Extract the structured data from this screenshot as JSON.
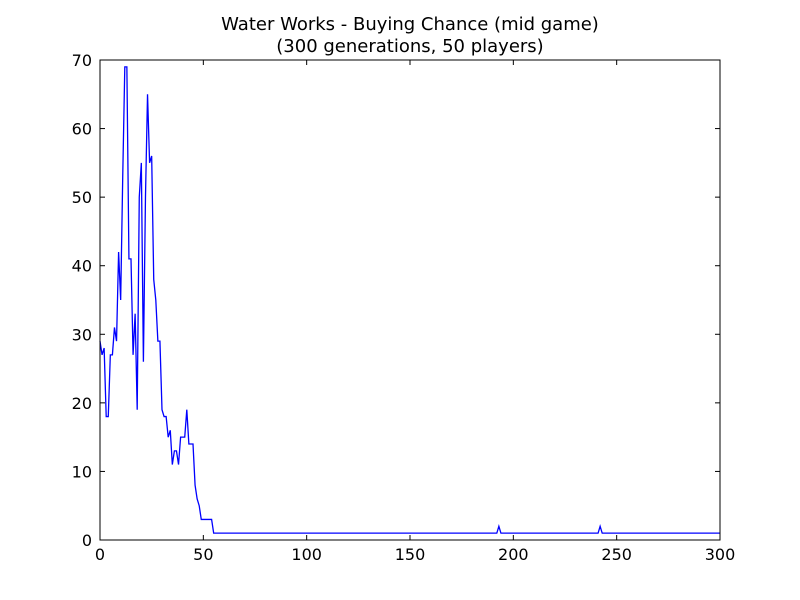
{
  "chart_data": {
    "type": "line",
    "title": "Water Works - Buying Chance (mid game)",
    "subtitle": "(300 generations, 50 players)",
    "xlabel": "",
    "ylabel": "",
    "xlim": [
      0,
      300
    ],
    "ylim": [
      0,
      70
    ],
    "xticks": [
      0,
      50,
      100,
      150,
      200,
      250,
      300
    ],
    "yticks": [
      0,
      10,
      20,
      30,
      40,
      50,
      60,
      70
    ],
    "grid": false,
    "legend": "none",
    "series": [
      {
        "color": "#0000ff",
        "points": [
          [
            0,
            29
          ],
          [
            1,
            27
          ],
          [
            2,
            28
          ],
          [
            3,
            18
          ],
          [
            4,
            18
          ],
          [
            5,
            27
          ],
          [
            6,
            27
          ],
          [
            7,
            31
          ],
          [
            8,
            29
          ],
          [
            9,
            42
          ],
          [
            10,
            35
          ],
          [
            11,
            53
          ],
          [
            12,
            69
          ],
          [
            13,
            69
          ],
          [
            14,
            41
          ],
          [
            15,
            41
          ],
          [
            16,
            27
          ],
          [
            17,
            33
          ],
          [
            18,
            19
          ],
          [
            19,
            50
          ],
          [
            20,
            55
          ],
          [
            21,
            26
          ],
          [
            22,
            50
          ],
          [
            23,
            65
          ],
          [
            24,
            55
          ],
          [
            25,
            56
          ],
          [
            26,
            38
          ],
          [
            27,
            35
          ],
          [
            28,
            29
          ],
          [
            29,
            29
          ],
          [
            30,
            19
          ],
          [
            31,
            18
          ],
          [
            32,
            18
          ],
          [
            33,
            15
          ],
          [
            34,
            16
          ],
          [
            35,
            11
          ],
          [
            36,
            13
          ],
          [
            37,
            13
          ],
          [
            38,
            11
          ],
          [
            39,
            15
          ],
          [
            40,
            15
          ],
          [
            41,
            15
          ],
          [
            42,
            19
          ],
          [
            43,
            14
          ],
          [
            44,
            14
          ],
          [
            45,
            14
          ],
          [
            46,
            8
          ],
          [
            47,
            6
          ],
          [
            48,
            5
          ],
          [
            49,
            3
          ],
          [
            50,
            3
          ],
          [
            51,
            3
          ],
          [
            52,
            3
          ],
          [
            53,
            3
          ],
          [
            54,
            3
          ],
          [
            55,
            1
          ],
          [
            60,
            1
          ],
          [
            80,
            1
          ],
          [
            100,
            1
          ],
          [
            120,
            1
          ],
          [
            140,
            1
          ],
          [
            160,
            1
          ],
          [
            180,
            1
          ],
          [
            192,
            1
          ],
          [
            193,
            2
          ],
          [
            194,
            1
          ],
          [
            200,
            1
          ],
          [
            220,
            1
          ],
          [
            241,
            1
          ],
          [
            242,
            2
          ],
          [
            243,
            1
          ],
          [
            260,
            1
          ],
          [
            280,
            1
          ],
          [
            300,
            1
          ]
        ]
      }
    ]
  }
}
